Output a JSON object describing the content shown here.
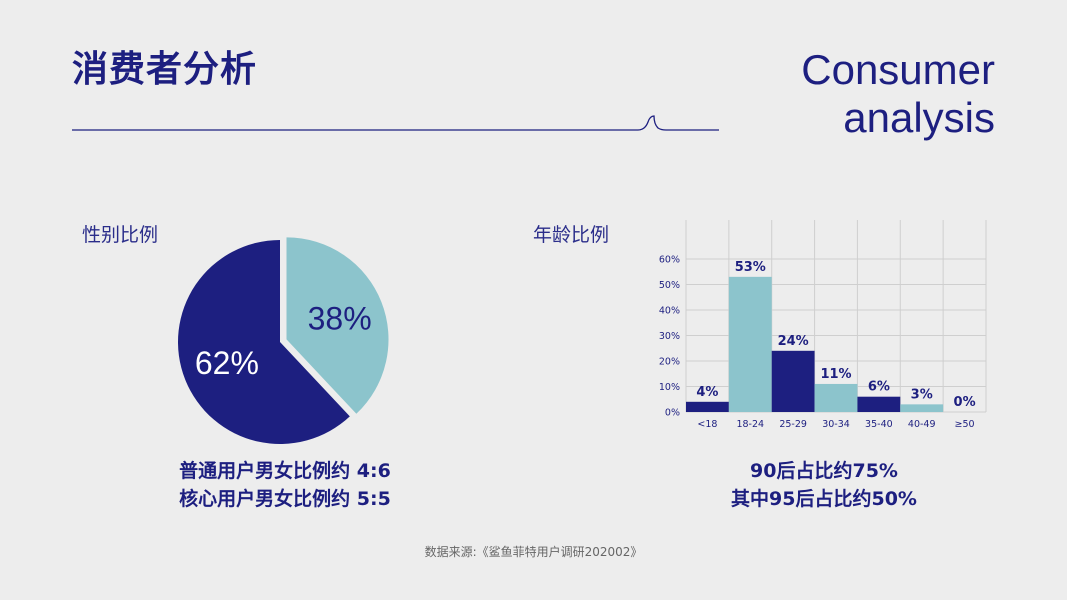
{
  "header": {
    "title_zh": "消费者分析",
    "title_en_line1": "Consumer",
    "title_en_line2": "analysis"
  },
  "colors": {
    "navy": "#1d1f80",
    "teal": "#8cc4cc",
    "background": "#ededed",
    "grid": "#cfcfcf"
  },
  "gender": {
    "label": "性别比例",
    "caption_line1": "普通用户男女比例约 4:6",
    "caption_line2": "核心用户男女比例约 5:5"
  },
  "age": {
    "label": "年龄比例",
    "caption_line1": "90后占比约75%",
    "caption_line2": "其中95后占比约50%"
  },
  "source": "数据来源:《鲨鱼菲特用户调研202002》",
  "chart_data": [
    {
      "type": "pie",
      "title": "性别比例",
      "slices": [
        {
          "label": "38%",
          "value": 38,
          "color": "#8cc4cc",
          "exploded": true
        },
        {
          "label": "62%",
          "value": 62,
          "color": "#1d1f80",
          "exploded": false
        }
      ]
    },
    {
      "type": "bar",
      "title": "年龄比例",
      "categories": [
        "<18",
        "18-24",
        "25-29",
        "30-34",
        "35-40",
        "40-49",
        "≥50"
      ],
      "values": [
        4,
        53,
        24,
        11,
        6,
        3,
        0
      ],
      "data_labels": [
        "4%",
        "53%",
        "24%",
        "11%",
        "6%",
        "3%",
        "0%"
      ],
      "bar_colors": [
        "#1d1f80",
        "#8cc4cc",
        "#1d1f80",
        "#8cc4cc",
        "#1d1f80",
        "#8cc4cc",
        "#1d1f80"
      ],
      "ylim": [
        0,
        60
      ],
      "yticks": [
        "0%",
        "10%",
        "20%",
        "30%",
        "40%",
        "50%",
        "60%"
      ],
      "grid": true
    }
  ]
}
